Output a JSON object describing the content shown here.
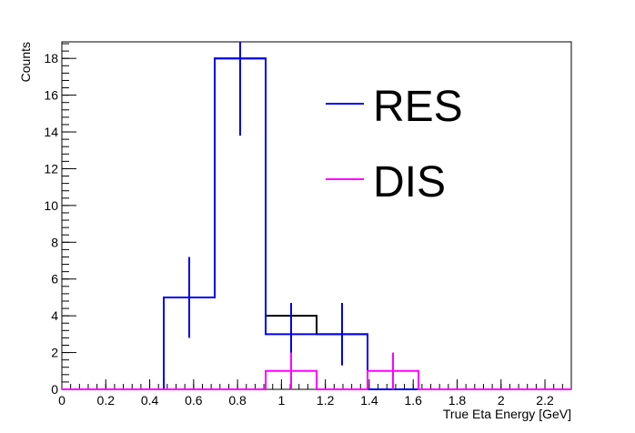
{
  "chart_data": {
    "type": "histogram",
    "xlabel": "True Eta Energy [GeV]",
    "ylabel": "Counts",
    "xlim": [
      0,
      2.32
    ],
    "ylim": [
      0,
      18.9
    ],
    "grid": false,
    "legend_position": "top-right",
    "x_ticks": [
      0,
      0.2,
      0.4,
      0.6,
      0.8,
      1,
      1.2,
      1.4,
      1.6,
      1.8,
      2,
      2.2
    ],
    "x_tick_labels": [
      "0",
      "0.2",
      "0.4",
      "0.6",
      "0.8",
      "1",
      "1.2",
      "1.4",
      "1.6",
      "1.8",
      "2",
      "2.2"
    ],
    "y_ticks": [
      0,
      2,
      4,
      6,
      8,
      10,
      12,
      14,
      16,
      18
    ],
    "y_tick_labels": [
      "0",
      "2",
      "4",
      "6",
      "8",
      "10",
      "12",
      "14",
      "16",
      "18"
    ],
    "series": [
      {
        "name": "",
        "color": "#000000",
        "bins": [
          [
            0,
            0.464,
            0
          ],
          [
            0.464,
            0.696,
            5
          ],
          [
            0.696,
            0.928,
            18
          ],
          [
            0.928,
            1.16,
            4
          ],
          [
            1.16,
            1.392,
            3
          ],
          [
            1.392,
            2.32,
            0
          ]
        ],
        "errors": []
      },
      {
        "name": "RES",
        "color": "#0000ee",
        "bins": [
          [
            0,
            0.464,
            0
          ],
          [
            0.464,
            0.696,
            5
          ],
          [
            0.696,
            0.928,
            18
          ],
          [
            0.928,
            1.16,
            3
          ],
          [
            1.16,
            1.392,
            3
          ],
          [
            1.392,
            2.32,
            0
          ]
        ],
        "errors": [
          {
            "x": 0.58,
            "low": 2.8,
            "high": 7.2
          },
          {
            "x": 0.812,
            "low": 13.8,
            "high": 18.9
          },
          {
            "x": 1.044,
            "low": 1.3,
            "high": 4.7
          },
          {
            "x": 1.276,
            "low": 1.3,
            "high": 4.7
          }
        ]
      },
      {
        "name": "DIS",
        "color": "#ff00ff",
        "bins": [
          [
            0,
            0.928,
            0
          ],
          [
            0.928,
            1.16,
            1
          ],
          [
            1.16,
            1.392,
            0
          ],
          [
            1.392,
            1.624,
            1
          ],
          [
            1.624,
            2.32,
            0
          ]
        ],
        "errors": [
          {
            "x": 1.044,
            "low": 0,
            "high": 2
          },
          {
            "x": 1.508,
            "low": 0,
            "high": 2
          }
        ]
      }
    ]
  },
  "legend": {
    "items": [
      {
        "label": "RES",
        "color": "#0000ee"
      },
      {
        "label": "DIS",
        "color": "#ff00ff"
      }
    ]
  }
}
